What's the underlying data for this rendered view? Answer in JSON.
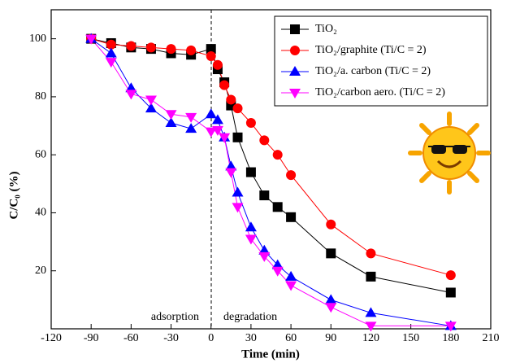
{
  "chart_data": {
    "type": "line",
    "x_label": "Time (min)",
    "y_label": "C/C₀ (%)",
    "annotations": [
      "adsorption",
      "degradation"
    ],
    "x": [
      -90,
      -75,
      -60,
      -45,
      -30,
      -15,
      0,
      5,
      10,
      15,
      20,
      30,
      40,
      50,
      60,
      90,
      120,
      180
    ],
    "series": [
      {
        "name": "TiO₂",
        "color": "#000000",
        "marker": "square",
        "values": [
          100,
          98.5,
          97,
          96.5,
          95,
          94.5,
          96.5,
          89.5,
          85,
          77,
          66,
          54,
          46,
          42,
          38.5,
          26,
          18,
          12.5
        ]
      },
      {
        "name": "TiO₂/graphite (Ti/C = 2)",
        "color": "#ff0000",
        "marker": "circle",
        "values": [
          100,
          98,
          97.5,
          97,
          96.5,
          96,
          94,
          91,
          84,
          79,
          76,
          71,
          65,
          60,
          53,
          36,
          26,
          18.5
        ]
      },
      {
        "name": "TiO₂/a. carbon (Ti/C = 2)",
        "color": "#0000ff",
        "marker": "triangle-up",
        "values": [
          100,
          95,
          83,
          76,
          71,
          69,
          74,
          72,
          66,
          56,
          47,
          35,
          27,
          22,
          18,
          10,
          5.5,
          1
        ]
      },
      {
        "name": "TiO₂/carbon aero. (Ti/C = 2)",
        "color": "#ff00ff",
        "marker": "triangle-down",
        "values": [
          100,
          92,
          81,
          79,
          74,
          73,
          68,
          68.5,
          66,
          54,
          42,
          31,
          25,
          20,
          15,
          7.5,
          1,
          1
        ]
      }
    ],
    "xlim": [
      -120,
      210
    ],
    "xticks": [
      -120,
      -90,
      -60,
      -30,
      0,
      30,
      60,
      90,
      120,
      150,
      180,
      210
    ],
    "ylim": [
      0,
      110
    ],
    "yticks": [
      20,
      40,
      60,
      80,
      100
    ],
    "legend": "upper right"
  }
}
